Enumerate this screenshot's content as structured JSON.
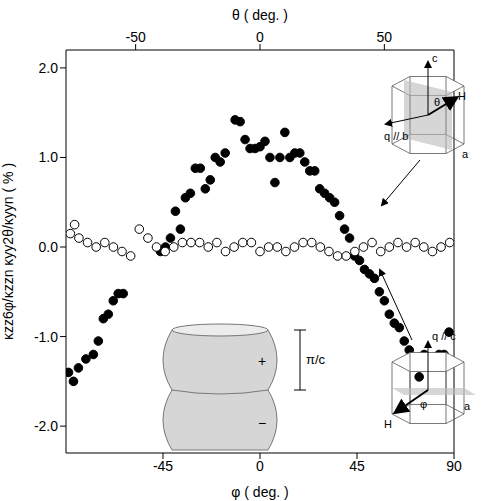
{
  "chart_data": {
    "type": "scatter",
    "xlabel": "φ ( deg. )",
    "xlim": [
      -90,
      90
    ],
    "xticks": [
      -45,
      0,
      45,
      90
    ],
    "x2label": "θ ( deg. )",
    "x2lim": [
      -78,
      78
    ],
    "x2ticks": [
      -50,
      0,
      50
    ],
    "ylabel": "κzz6φ/κzzn κyy2θ/κyyn ( % )",
    "ylim": [
      -2.3,
      2.2
    ],
    "yticks": [
      {
        "value": 2,
        "label": "2.0"
      },
      {
        "value": 1,
        "label": "1.0"
      },
      {
        "value": 0,
        "label": "0.0"
      },
      {
        "value": -1,
        "label": "-1.0"
      },
      {
        "value": -2,
        "label": "-2.0"
      }
    ],
    "grid": false,
    "annotations": [
      "π/c",
      "+",
      "−",
      "c",
      "θ",
      "H",
      "q // b",
      "a",
      "q // c",
      "φ",
      "H",
      "a"
    ],
    "series": [
      {
        "axis": "x2",
        "color": "#000000",
        "marker": "filled circle",
        "x": [
          -77,
          -75,
          -73,
          -70,
          -67,
          -65,
          -63,
          -61,
          -59,
          -57,
          -55,
          -40,
          -38,
          -36,
          -34,
          -32,
          -30,
          -28,
          -26,
          -24,
          -22,
          -20,
          -18,
          -16,
          -14,
          -10,
          -8,
          -6,
          -4,
          -2,
          0,
          2,
          4,
          6,
          8,
          10,
          12,
          14,
          16,
          18,
          20,
          22,
          24,
          26,
          28,
          30,
          32,
          34,
          36,
          38,
          40,
          42,
          44,
          46,
          48,
          50,
          52,
          54,
          56,
          58,
          60,
          62,
          64,
          66,
          70,
          72,
          74,
          76
        ],
        "values": [
          -1.4,
          -1.5,
          -1.35,
          -1.25,
          -1.2,
          -1.05,
          -0.8,
          -0.75,
          -0.6,
          -0.52,
          -0.52,
          -0.05,
          0.0,
          0.1,
          0.4,
          0.2,
          0.55,
          0.6,
          0.88,
          0.88,
          0.65,
          0.75,
          1.0,
          0.95,
          1.05,
          1.42,
          1.4,
          1.2,
          1.1,
          1.1,
          1.12,
          1.18,
          1.0,
          0.72,
          1.0,
          1.28,
          1.0,
          1.05,
          1.05,
          0.95,
          0.85,
          0.85,
          0.65,
          0.6,
          0.55,
          0.5,
          0.35,
          0.2,
          0.1,
          -0.1,
          -0.15,
          -0.25,
          -0.3,
          -0.35,
          -0.5,
          -0.6,
          -0.75,
          -0.85,
          -0.9,
          -1.05,
          -1.15,
          -1.25,
          -1.45,
          -1.2,
          -1.25,
          -1.2,
          -1.2,
          -0.95
        ]
      },
      {
        "color": "#000000",
        "marker": "open circle",
        "x": [
          -88,
          -86,
          -84,
          -80,
          -76,
          -72,
          -68,
          -64,
          -60,
          -56,
          -52,
          -48,
          -44,
          -40,
          -36,
          -32,
          -28,
          -24,
          -20,
          -16,
          -12,
          -8,
          -4,
          0,
          4,
          8,
          12,
          16,
          20,
          24,
          28,
          32,
          36,
          40,
          44,
          48,
          52,
          56,
          60,
          64,
          68,
          72,
          76,
          80,
          84,
          88
        ],
        "values": [
          0.15,
          0.25,
          0.1,
          0.05,
          0.0,
          0.05,
          0.0,
          -0.05,
          -0.1,
          0.2,
          0.1,
          0.0,
          -0.05,
          0.0,
          0.05,
          0.05,
          0.05,
          0.0,
          0.05,
          -0.05,
          0.0,
          0.05,
          0.05,
          -0.05,
          0.0,
          0.0,
          -0.05,
          0.0,
          0.05,
          0.05,
          0.0,
          -0.05,
          -0.1,
          -0.1,
          -0.05,
          0.0,
          0.05,
          -0.05,
          0.0,
          0.05,
          0.0,
          0.05,
          0.0,
          -0.05,
          0.0,
          0.05
        ]
      }
    ]
  }
}
